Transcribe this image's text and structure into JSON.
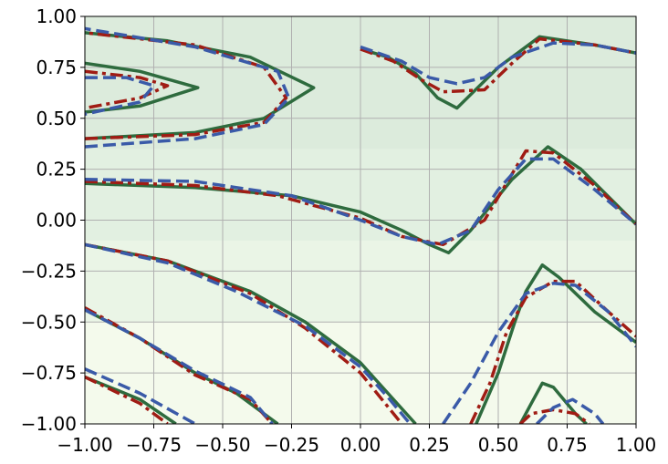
{
  "chart_data": {
    "type": "line",
    "title": "",
    "xlabel": "",
    "ylabel": "",
    "xlim": [
      -1.0,
      1.0
    ],
    "ylim": [
      -1.0,
      1.0
    ],
    "grid": true,
    "x_ticks": [
      "−1.00",
      "−0.75",
      "−0.50",
      "−0.25",
      "0.00",
      "0.25",
      "0.50",
      "0.75",
      "1.00"
    ],
    "x_tick_values": [
      -1.0,
      -0.75,
      -0.5,
      -0.25,
      0.0,
      0.25,
      0.5,
      0.75,
      1.0
    ],
    "y_ticks": [
      "1.00",
      "0.75",
      "0.50",
      "0.25",
      "0.00",
      "−0.25",
      "−0.50",
      "−0.75",
      "−1.00"
    ],
    "y_tick_values": [
      1.0,
      0.75,
      0.5,
      0.25,
      0.0,
      -0.25,
      -0.5,
      -0.75,
      -1.0
    ],
    "background_bands": [
      {
        "y_min": 0.35,
        "y_max": 1.0,
        "color": "#dcebdc"
      },
      {
        "y_min": -0.1,
        "y_max": 0.35,
        "color": "#e2f0e1"
      },
      {
        "y_min": -0.5,
        "y_max": -0.1,
        "color": "#eaf5e6"
      },
      {
        "y_min": -1.0,
        "y_max": -0.5,
        "color": "#f4faec"
      }
    ],
    "series": [
      {
        "color": "#2e6b3e",
        "style": "solid",
        "width": 3.5,
        "segments": [
          [
            [
              -1.0,
              0.77
            ],
            [
              -0.8,
              0.73
            ],
            [
              -0.59,
              0.65
            ],
            [
              -0.8,
              0.56
            ],
            [
              -1.0,
              0.53
            ]
          ],
          [
            [
              -1.0,
              0.4
            ],
            [
              -0.6,
              0.43
            ],
            [
              -0.35,
              0.5
            ],
            [
              -0.17,
              0.65
            ],
            [
              -0.4,
              0.8
            ],
            [
              -0.7,
              0.88
            ],
            [
              -1.0,
              0.92
            ]
          ],
          [
            [
              0.0,
              0.84
            ],
            [
              0.1,
              0.8
            ],
            [
              0.2,
              0.72
            ],
            [
              0.28,
              0.6
            ],
            [
              0.35,
              0.55
            ],
            [
              0.5,
              0.75
            ],
            [
              0.65,
              0.9
            ],
            [
              0.85,
              0.86
            ],
            [
              1.0,
              0.82
            ]
          ],
          [
            [
              -1.0,
              0.18
            ],
            [
              -0.6,
              0.16
            ],
            [
              -0.25,
              0.12
            ],
            [
              0.0,
              0.04
            ],
            [
              0.15,
              -0.05
            ],
            [
              0.25,
              -0.12
            ],
            [
              0.32,
              -0.16
            ],
            [
              0.4,
              -0.05
            ],
            [
              0.55,
              0.2
            ],
            [
              0.68,
              0.36
            ],
            [
              0.8,
              0.25
            ],
            [
              1.0,
              -0.02
            ]
          ],
          [
            [
              -1.0,
              -0.12
            ],
            [
              -0.7,
              -0.2
            ],
            [
              -0.4,
              -0.35
            ],
            [
              -0.2,
              -0.5
            ],
            [
              0.0,
              -0.7
            ],
            [
              0.1,
              -0.85
            ],
            [
              0.2,
              -1.0
            ]
          ],
          [
            [
              -1.0,
              -0.44
            ],
            [
              -0.8,
              -0.58
            ],
            [
              -0.6,
              -0.75
            ],
            [
              -0.45,
              -0.85
            ],
            [
              -0.3,
              -1.0
            ]
          ],
          [
            [
              -1.0,
              -0.77
            ],
            [
              -0.8,
              -0.88
            ],
            [
              -0.67,
              -1.0
            ]
          ],
          [
            [
              0.42,
              -1.0
            ],
            [
              0.5,
              -0.75
            ],
            [
              0.56,
              -0.5
            ],
            [
              0.6,
              -0.35
            ],
            [
              0.66,
              -0.22
            ],
            [
              0.72,
              -0.28
            ],
            [
              0.85,
              -0.45
            ],
            [
              1.0,
              -0.6
            ]
          ],
          [
            [
              0.58,
              -1.0
            ],
            [
              0.62,
              -0.9
            ],
            [
              0.66,
              -0.8
            ],
            [
              0.7,
              -0.82
            ],
            [
              0.78,
              -0.95
            ],
            [
              0.82,
              -1.0
            ]
          ]
        ]
      },
      {
        "color": "#a01c14",
        "style": "dashdot",
        "width": 3.5,
        "segments": [
          [
            [
              -1.0,
              0.73
            ],
            [
              -0.8,
              0.7
            ],
            [
              -0.7,
              0.66
            ],
            [
              -0.8,
              0.6
            ],
            [
              -1.0,
              0.55
            ]
          ],
          [
            [
              -1.0,
              0.4
            ],
            [
              -0.6,
              0.42
            ],
            [
              -0.35,
              0.48
            ],
            [
              -0.27,
              0.6
            ],
            [
              -0.35,
              0.75
            ],
            [
              -0.6,
              0.86
            ],
            [
              -1.0,
              0.92
            ]
          ],
          [
            [
              0.0,
              0.84
            ],
            [
              0.12,
              0.78
            ],
            [
              0.22,
              0.69
            ],
            [
              0.3,
              0.63
            ],
            [
              0.45,
              0.64
            ],
            [
              0.55,
              0.77
            ],
            [
              0.65,
              0.89
            ],
            [
              0.85,
              0.86
            ],
            [
              1.0,
              0.82
            ]
          ],
          [
            [
              -1.0,
              0.19
            ],
            [
              -0.6,
              0.17
            ],
            [
              -0.3,
              0.12
            ],
            [
              0.0,
              0.01
            ],
            [
              0.15,
              -0.08
            ],
            [
              0.3,
              -0.12
            ],
            [
              0.45,
              0.0
            ],
            [
              0.6,
              0.34
            ],
            [
              0.7,
              0.33
            ],
            [
              0.85,
              0.17
            ],
            [
              1.0,
              -0.02
            ]
          ],
          [
            [
              -1.0,
              -0.12
            ],
            [
              -0.7,
              -0.2
            ],
            [
              -0.4,
              -0.36
            ],
            [
              -0.2,
              -0.53
            ],
            [
              0.0,
              -0.75
            ],
            [
              0.15,
              -1.0
            ]
          ],
          [
            [
              -1.0,
              -0.43
            ],
            [
              -0.8,
              -0.58
            ],
            [
              -0.6,
              -0.76
            ],
            [
              -0.4,
              -0.88
            ],
            [
              -0.32,
              -1.0
            ]
          ],
          [
            [
              -1.0,
              -0.77
            ],
            [
              -0.8,
              -0.9
            ],
            [
              -0.7,
              -1.0
            ]
          ],
          [
            [
              0.4,
              -1.0
            ],
            [
              0.47,
              -0.8
            ],
            [
              0.53,
              -0.55
            ],
            [
              0.6,
              -0.38
            ],
            [
              0.7,
              -0.3
            ],
            [
              0.78,
              -0.3
            ],
            [
              0.9,
              -0.45
            ],
            [
              1.0,
              -0.57
            ]
          ],
          [
            [
              0.58,
              -1.0
            ],
            [
              0.62,
              -0.95
            ],
            [
              0.7,
              -0.93
            ],
            [
              0.78,
              -0.95
            ],
            [
              0.83,
              -1.0
            ]
          ]
        ]
      },
      {
        "color": "#3a5aa8",
        "style": "dashed",
        "width": 3.5,
        "segments": [
          [
            [
              -1.0,
              0.7
            ],
            [
              -0.85,
              0.7
            ],
            [
              -0.75,
              0.66
            ],
            [
              -0.8,
              0.58
            ],
            [
              -1.0,
              0.52
            ]
          ],
          [
            [
              -1.0,
              0.36
            ],
            [
              -0.6,
              0.4
            ],
            [
              -0.35,
              0.47
            ],
            [
              -0.26,
              0.6
            ],
            [
              -0.3,
              0.73
            ],
            [
              -0.6,
              0.85
            ],
            [
              -1.0,
              0.94
            ]
          ],
          [
            [
              0.0,
              0.85
            ],
            [
              0.15,
              0.78
            ],
            [
              0.25,
              0.7
            ],
            [
              0.35,
              0.67
            ],
            [
              0.45,
              0.7
            ],
            [
              0.55,
              0.8
            ],
            [
              0.7,
              0.87
            ],
            [
              0.85,
              0.86
            ],
            [
              1.0,
              0.82
            ]
          ],
          [
            [
              -1.0,
              0.2
            ],
            [
              -0.6,
              0.19
            ],
            [
              -0.25,
              0.12
            ],
            [
              0.0,
              0.0
            ],
            [
              0.15,
              -0.08
            ],
            [
              0.28,
              -0.12
            ],
            [
              0.4,
              -0.05
            ],
            [
              0.5,
              0.15
            ],
            [
              0.6,
              0.3
            ],
            [
              0.7,
              0.3
            ],
            [
              0.85,
              0.15
            ],
            [
              1.0,
              -0.02
            ]
          ],
          [
            [
              -1.0,
              -0.12
            ],
            [
              -0.7,
              -0.21
            ],
            [
              -0.45,
              -0.35
            ],
            [
              -0.2,
              -0.52
            ],
            [
              0.0,
              -0.72
            ],
            [
              0.1,
              -0.87
            ],
            [
              0.18,
              -1.0
            ]
          ],
          [
            [
              -1.0,
              -0.44
            ],
            [
              -0.8,
              -0.58
            ],
            [
              -0.6,
              -0.74
            ],
            [
              -0.4,
              -0.87
            ],
            [
              -0.32,
              -1.0
            ]
          ],
          [
            [
              -1.0,
              -0.73
            ],
            [
              -0.8,
              -0.85
            ],
            [
              -0.6,
              -1.0
            ]
          ],
          [
            [
              0.3,
              -1.0
            ],
            [
              0.4,
              -0.8
            ],
            [
              0.5,
              -0.55
            ],
            [
              0.6,
              -0.36
            ],
            [
              0.7,
              -0.31
            ],
            [
              0.78,
              -0.32
            ],
            [
              0.9,
              -0.45
            ],
            [
              1.0,
              -0.62
            ]
          ],
          [
            [
              0.64,
              -1.0
            ],
            [
              0.7,
              -0.92
            ],
            [
              0.77,
              -0.88
            ],
            [
              0.85,
              -0.95
            ],
            [
              0.88,
              -1.0
            ]
          ]
        ]
      }
    ]
  }
}
